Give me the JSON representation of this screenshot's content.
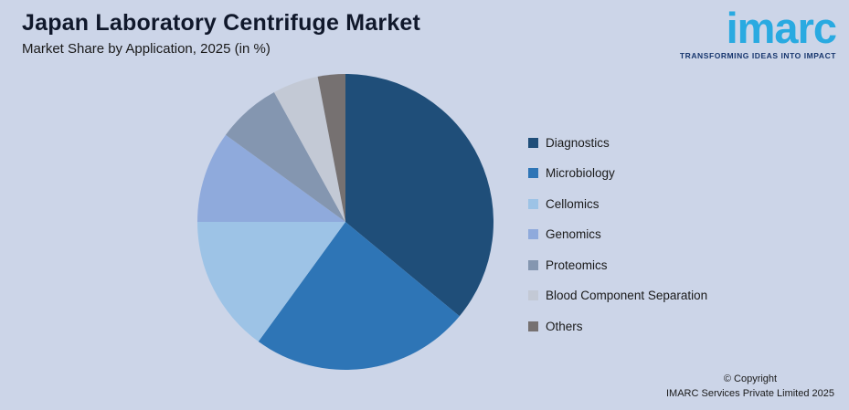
{
  "header": {
    "title": "Japan Laboratory Centrifuge Market",
    "subtitle": "Market Share by Application, 2025 (in %)"
  },
  "logo": {
    "name": "imarc",
    "tagline": "TRANSFORMING IDEAS INTO IMPACT"
  },
  "footer": {
    "copyright_line1": "© Copyright",
    "copyright_line2": "IMARC Services Private Limited 2025"
  },
  "colors": {
    "background": "#ccd5e8",
    "title_text": "#10182b",
    "logo_blue": "#29aae1",
    "logo_tagline_blue": "#17366e"
  },
  "chart_data": {
    "type": "pie",
    "title": "Japan Laboratory Centrifuge Market",
    "subtitle": "Market Share by Application, 2025 (in %)",
    "legend_position": "right",
    "start_angle_deg": 0,
    "direction": "clockwise",
    "values_shown_on_chart": false,
    "series": [
      {
        "label": "Diagnostics",
        "value": 36,
        "color": "#1f4e79"
      },
      {
        "label": "Microbiology",
        "value": 24,
        "color": "#2e75b6"
      },
      {
        "label": "Cellomics",
        "value": 15,
        "color": "#9dc3e6"
      },
      {
        "label": "Genomics",
        "value": 10,
        "color": "#8faadc"
      },
      {
        "label": "Proteomics",
        "value": 7,
        "color": "#8496b0"
      },
      {
        "label": "Blood Component Separation",
        "value": 5,
        "color": "#c3c9d5"
      },
      {
        "label": "Others",
        "value": 3,
        "color": "#767171"
      }
    ]
  }
}
